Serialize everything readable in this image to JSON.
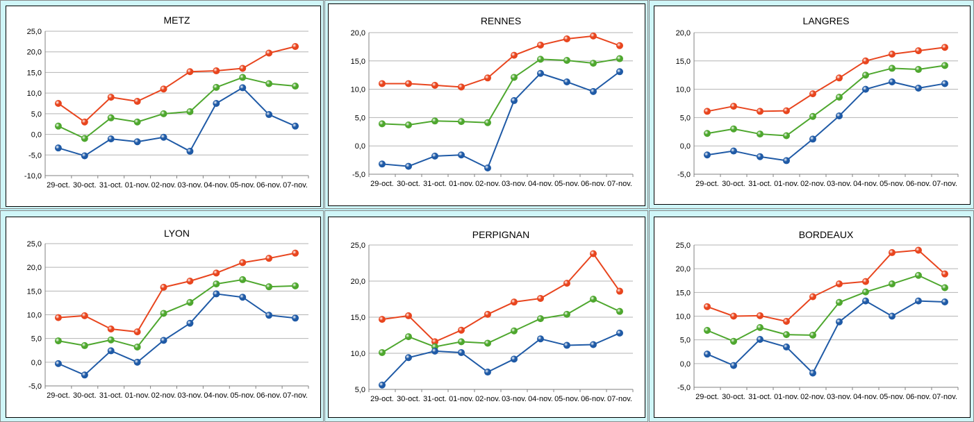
{
  "colors": {
    "min": "#1f5aa6",
    "avg": "#4ea72e",
    "max": "#e8451e",
    "grid": "#b3b3b3",
    "axis": "#808080",
    "background": "#cff6f8"
  },
  "chart_data": [
    {
      "type": "line",
      "title": "METZ",
      "categories": [
        "29-oct.",
        "30-oct.",
        "31-oct.",
        "01-nov.",
        "02-nov.",
        "03-nov.",
        "04-nov.",
        "05-nov.",
        "06-nov.",
        "07-nov."
      ],
      "ylim": [
        -10,
        25
      ],
      "yticks": [
        "-10,0",
        "-5,0",
        "0,0",
        "5,0",
        "10,0",
        "15,0",
        "20,0",
        "25,0"
      ],
      "grid": true,
      "series": [
        {
          "color": "#e8451e",
          "values": [
            7.5,
            3.0,
            9.0,
            8.0,
            11.0,
            15.2,
            15.4,
            16.0,
            19.7,
            21.3
          ]
        },
        {
          "color": "#4ea72e",
          "values": [
            2.0,
            -1.0,
            4.0,
            3.0,
            5.0,
            5.5,
            11.4,
            13.8,
            12.3,
            11.7
          ]
        },
        {
          "color": "#1f5aa6",
          "values": [
            -3.3,
            -5.2,
            -1.1,
            -1.8,
            -0.7,
            -4.1,
            7.5,
            11.3,
            4.8,
            2.0
          ]
        }
      ]
    },
    {
      "type": "line",
      "title": "RENNES",
      "categories": [
        "29-oct.",
        "30-oct.",
        "31-oct.",
        "01-nov.",
        "02-nov.",
        "03-nov.",
        "04-nov.",
        "05-nov.",
        "06-nov.",
        "07-nov."
      ],
      "ylim": [
        -5,
        20
      ],
      "yticks": [
        "-5,0",
        "0,0",
        "5,0",
        "10,0",
        "15,0",
        "20,0"
      ],
      "grid": true,
      "series": [
        {
          "color": "#e8451e",
          "values": [
            11.0,
            11.0,
            10.7,
            10.4,
            12.0,
            16.0,
            17.8,
            18.9,
            19.4,
            17.7
          ]
        },
        {
          "color": "#4ea72e",
          "values": [
            3.9,
            3.7,
            4.4,
            4.3,
            4.1,
            12.1,
            15.3,
            15.1,
            14.6,
            15.4
          ]
        },
        {
          "color": "#1f5aa6",
          "values": [
            -3.2,
            -3.6,
            -1.8,
            -1.6,
            -3.9,
            8.0,
            12.8,
            11.3,
            9.6,
            13.1
          ]
        }
      ]
    },
    {
      "type": "line",
      "title": "LANGRES",
      "categories": [
        "29-oct.",
        "30-oct.",
        "31-oct.",
        "01-nov.",
        "02-nov.",
        "03-nov.",
        "04-nov.",
        "05-nov.",
        "06-nov.",
        "07-nov."
      ],
      "ylim": [
        -5,
        20
      ],
      "yticks": [
        "-5,0",
        "0,0",
        "5,0",
        "10,0",
        "15,0",
        "20,0"
      ],
      "grid": true,
      "series": [
        {
          "color": "#e8451e",
          "values": [
            6.1,
            7.0,
            6.1,
            6.2,
            9.2,
            12.0,
            15.0,
            16.2,
            16.8,
            17.4
          ]
        },
        {
          "color": "#4ea72e",
          "values": [
            2.2,
            3.0,
            2.1,
            1.8,
            5.2,
            8.6,
            12.5,
            13.7,
            13.5,
            14.2
          ]
        },
        {
          "color": "#1f5aa6",
          "values": [
            -1.6,
            -0.9,
            -1.9,
            -2.6,
            1.2,
            5.3,
            10.0,
            11.3,
            10.2,
            11.0
          ]
        }
      ]
    },
    {
      "type": "line",
      "title": "LYON",
      "categories": [
        "29-oct.",
        "30-oct.",
        "31-oct.",
        "01-nov.",
        "02-nov.",
        "03-nov.",
        "04-nov.",
        "05-nov.",
        "06-nov.",
        "07-nov."
      ],
      "ylim": [
        -5,
        25
      ],
      "yticks": [
        "-5,0",
        "0,0",
        "5,0",
        "10,0",
        "15,0",
        "20,0",
        "25,0"
      ],
      "grid": true,
      "series": [
        {
          "color": "#e8451e",
          "values": [
            9.4,
            9.8,
            7.0,
            6.4,
            15.8,
            17.1,
            18.8,
            21.0,
            21.9,
            23.0
          ]
        },
        {
          "color": "#4ea72e",
          "values": [
            4.5,
            3.5,
            4.7,
            3.2,
            10.3,
            12.6,
            16.5,
            17.4,
            15.9,
            16.1
          ]
        },
        {
          "color": "#1f5aa6",
          "values": [
            -0.3,
            -2.7,
            2.4,
            0.0,
            4.6,
            8.2,
            14.4,
            13.7,
            9.9,
            9.3
          ]
        }
      ]
    },
    {
      "type": "line",
      "title": "PERPIGNAN",
      "categories": [
        "29-oct.",
        "30-oct.",
        "31-oct.",
        "01-nov.",
        "02-nov.",
        "03-nov.",
        "04-nov.",
        "05-nov.",
        "06-nov.",
        "07-nov."
      ],
      "ylim": [
        5,
        25
      ],
      "yticks": [
        "5,0",
        "10,0",
        "15,0",
        "20,0",
        "25,0"
      ],
      "grid": true,
      "series": [
        {
          "color": "#e8451e",
          "values": [
            14.7,
            15.2,
            11.6,
            13.2,
            15.4,
            17.1,
            17.6,
            19.7,
            23.8,
            18.6
          ]
        },
        {
          "color": "#4ea72e",
          "values": [
            10.1,
            12.3,
            10.9,
            11.6,
            11.4,
            13.1,
            14.8,
            15.4,
            17.5,
            15.8
          ]
        },
        {
          "color": "#1f5aa6",
          "values": [
            5.6,
            9.4,
            10.3,
            10.1,
            7.4,
            9.2,
            12.0,
            11.1,
            11.2,
            12.8
          ]
        }
      ]
    },
    {
      "type": "line",
      "title": "BORDEAUX",
      "categories": [
        "29-oct.",
        "30-oct.",
        "31-oct.",
        "01-nov.",
        "02-nov.",
        "03-nov.",
        "04-nov.",
        "05-nov.",
        "06-nov.",
        "07-nov."
      ],
      "ylim": [
        -5,
        25
      ],
      "yticks": [
        "-5,0",
        "0,0",
        "5,0",
        "10,0",
        "15,0",
        "20,0",
        "25,0"
      ],
      "grid": true,
      "series": [
        {
          "color": "#e8451e",
          "values": [
            12.0,
            10.0,
            10.1,
            8.9,
            14.1,
            16.8,
            17.3,
            23.4,
            23.9,
            18.9
          ]
        },
        {
          "color": "#4ea72e",
          "values": [
            7.0,
            4.7,
            7.6,
            6.1,
            6.0,
            12.9,
            15.1,
            16.8,
            18.6,
            16.0
          ]
        },
        {
          "color": "#1f5aa6",
          "values": [
            2.0,
            -0.4,
            5.1,
            3.5,
            -2.0,
            8.8,
            13.2,
            10.0,
            13.2,
            13.0
          ]
        }
      ]
    }
  ]
}
